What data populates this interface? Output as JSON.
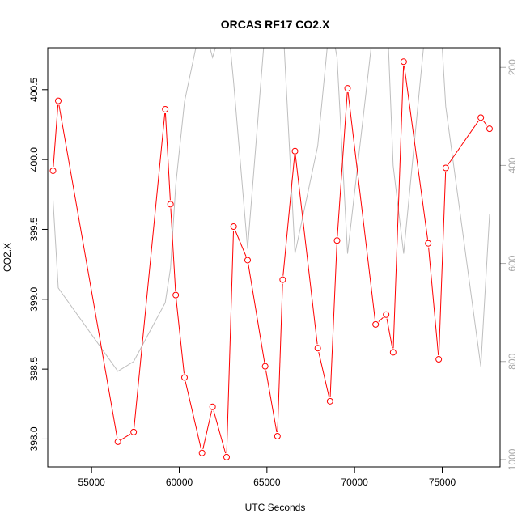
{
  "chart_data": {
    "type": "line",
    "title": "ORCAS RF17 CO2.X",
    "xlabel": "UTC Seconds",
    "ylabel": "CO2.X",
    "xlim": [
      52500,
      78300
    ],
    "ylim": [
      397.8,
      400.8
    ],
    "x_ticks": [
      55000,
      60000,
      65000,
      70000,
      75000
    ],
    "y_ticks": [
      398.0,
      398.5,
      399.0,
      399.5,
      400.0,
      400.5
    ],
    "y_tick_labels": [
      "398.0",
      "398.5",
      "399.0",
      "399.5",
      "400.0",
      "400.5"
    ],
    "right_axis": {
      "ylim": [
        1015,
        160
      ],
      "ticks": [
        200,
        400,
        600,
        800,
        1000
      ],
      "reversed": true
    },
    "grid": false,
    "series": [
      {
        "color": "#ff0000",
        "style": "line+points",
        "axis": "left",
        "x": [
          52800,
          53100,
          56500,
          57400,
          59200,
          59500,
          59800,
          60300,
          61300,
          61900,
          62700,
          63100,
          63900,
          64900,
          65600,
          65900,
          66600,
          67900,
          68600,
          69000,
          69600,
          71200,
          71800,
          72200,
          72800,
          74200,
          74800,
          75200,
          77200,
          77700
        ],
        "values": [
          399.92,
          400.42,
          397.98,
          398.05,
          400.36,
          399.68,
          399.03,
          398.44,
          397.9,
          398.23,
          397.87,
          399.52,
          399.28,
          398.52,
          398.02,
          399.14,
          400.06,
          398.65,
          398.27,
          399.42,
          400.51,
          398.82,
          398.89,
          398.62,
          400.7,
          399.4,
          398.57,
          399.94,
          400.3,
          400.22
        ]
      },
      {
        "color": "#bebebe",
        "style": "line",
        "axis": "right",
        "x": [
          52800,
          53100,
          56500,
          57400,
          59200,
          59500,
          59800,
          60300,
          61300,
          61900,
          62700,
          63100,
          63900,
          64900,
          65600,
          65900,
          66600,
          67900,
          68600,
          69000,
          69600,
          71200,
          71800,
          72200,
          72800,
          74200,
          74800,
          75200,
          77200,
          77700
        ],
        "values": [
          470,
          650,
          820,
          800,
          680,
          610,
          440,
          270,
          100,
          180,
          80,
          230,
          570,
          120,
          50,
          100,
          580,
          360,
          100,
          180,
          580,
          80,
          40,
          400,
          580,
          60,
          40,
          280,
          810,
          500
        ]
      }
    ]
  }
}
